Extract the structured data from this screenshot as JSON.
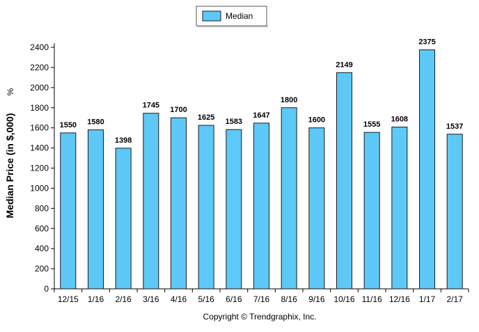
{
  "chart_data": {
    "type": "bar",
    "categories": [
      "12/15",
      "1/16",
      "2/16",
      "3/16",
      "4/16",
      "5/16",
      "6/16",
      "7/16",
      "8/16",
      "9/16",
      "10/16",
      "11/16",
      "12/16",
      "1/17",
      "2/17"
    ],
    "series": [
      {
        "name": "Median",
        "values": [
          1550,
          1580,
          1398,
          1745,
          1700,
          1625,
          1583,
          1647,
          1800,
          1600,
          2149,
          1555,
          1608,
          2375,
          1537
        ]
      }
    ],
    "title": "",
    "xlabel": "",
    "ylabel": "Median Price (in $,000)",
    "ylabel_suffix": "%",
    "ylim": [
      0,
      2400
    ],
    "yticks": [
      0,
      200,
      400,
      600,
      800,
      1000,
      1200,
      1400,
      1600,
      1800,
      2000,
      2200,
      2400
    ],
    "grid": false,
    "legend_position": "top-center",
    "bar_color": "#5ec8f8",
    "bar_edge_color": "#1a1a1a",
    "footer": "Copyright © Trendgraphix, Inc."
  }
}
